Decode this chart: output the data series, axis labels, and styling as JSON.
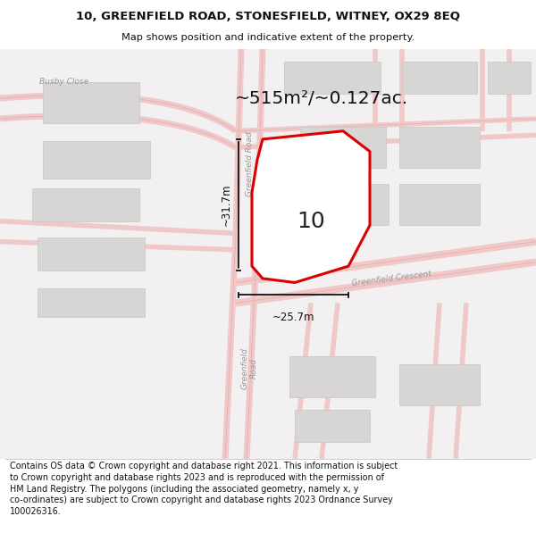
{
  "title_line1": "10, GREENFIELD ROAD, STONESFIELD, WITNEY, OX29 8EQ",
  "title_line2": "Map shows position and indicative extent of the property.",
  "area_text": "~515m²/~0.127ac.",
  "number_label": "10",
  "dim_vertical": "~31.7m",
  "dim_horizontal": "~25.7m",
  "footer_lines": [
    "Contains OS data © Crown copyright and database right 2021. This information is subject to Crown copyright and database rights 2023 and is reproduced with the permission of",
    "HM Land Registry. The polygons (including the associated geometry, namely x, y co-ordinates) are subject to Crown copyright and database rights 2023 Ordnance Survey",
    "100026316."
  ],
  "map_bg": "#f2f0f0",
  "building_color": "#d8d5d5",
  "building_edge": "#c8c4c4",
  "road_color": "#f0c8c8",
  "road_center_color": "#e8b0b0",
  "plot_outline_color": "#dd0000",
  "plot_fill_color": "#ffffff",
  "dim_color": "#111111",
  "label_color": "#888888",
  "title_color": "#111111"
}
